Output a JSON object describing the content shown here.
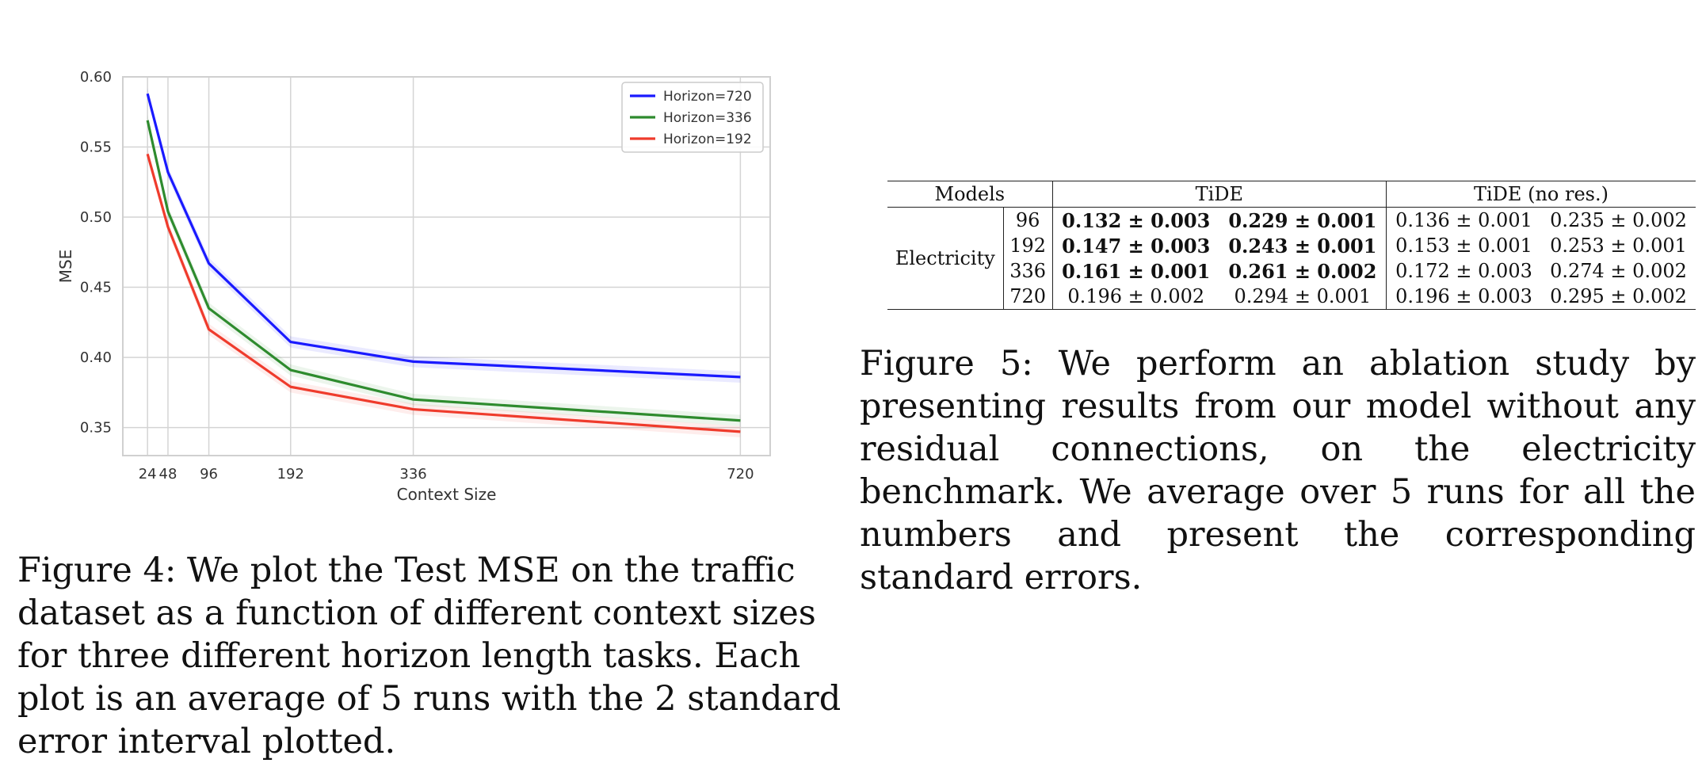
{
  "figure4": {
    "caption": "Figure 4: We plot the Test MSE on the traffic dataset as a function of different context sizes for three different horizon length tasks. Each plot is an average of 5 runs with the 2 standard error interval plotted."
  },
  "chart_data": {
    "type": "line",
    "xlabel": "Context Size",
    "ylabel": "MSE",
    "x": [
      24,
      48,
      96,
      192,
      336,
      720
    ],
    "x_ticks": [
      "24",
      "48",
      "96",
      "192",
      "336",
      "720"
    ],
    "y_ticks": [
      "0.35",
      "0.40",
      "0.45",
      "0.50",
      "0.55",
      "0.60"
    ],
    "ylim": [
      0.33,
      0.6
    ],
    "xlim": [
      -5,
      755
    ],
    "grid": true,
    "legend_position": "top-right",
    "series": [
      {
        "name": "Horizon=720",
        "color": "#1a1aff",
        "values": [
          0.588,
          0.532,
          0.467,
          0.411,
          0.397,
          0.386
        ]
      },
      {
        "name": "Horizon=336",
        "color": "#2e8b2e",
        "values": [
          0.569,
          0.504,
          0.435,
          0.391,
          0.37,
          0.355
        ]
      },
      {
        "name": "Horizon=192",
        "color": "#ef3b2c",
        "values": [
          0.545,
          0.493,
          0.42,
          0.379,
          0.363,
          0.347
        ]
      }
    ]
  },
  "figure5": {
    "caption": "Figure 5: We perform an ablation study by presenting results from our model without any residual connections, on the electricity benchmark. We average over 5 runs for all the numbers and present the corresponding standard errors."
  },
  "table": {
    "header": {
      "models": "Models",
      "tide": "TiDE",
      "tide_nores": "TiDE (no res.)"
    },
    "dataset": "Electricity",
    "rows": [
      {
        "h": "96",
        "c1": "0.132 ± 0.003",
        "c2": "0.229 ± 0.001",
        "c3": "0.136 ± 0.001",
        "c4": "0.235 ± 0.002"
      },
      {
        "h": "192",
        "c1": "0.147 ± 0.003",
        "c2": "0.243 ± 0.001",
        "c3": "0.153 ± 0.001",
        "c4": "0.253 ± 0.001"
      },
      {
        "h": "336",
        "c1": "0.161 ± 0.001",
        "c2": "0.261 ± 0.002",
        "c3": "0.172 ± 0.003",
        "c4": "0.274 ± 0.002"
      },
      {
        "h": "720",
        "c1": "0.196 ± 0.002",
        "c2": "0.294 ± 0.001",
        "c3": "0.196 ± 0.003",
        "c4": "0.295 ± 0.002"
      }
    ]
  }
}
